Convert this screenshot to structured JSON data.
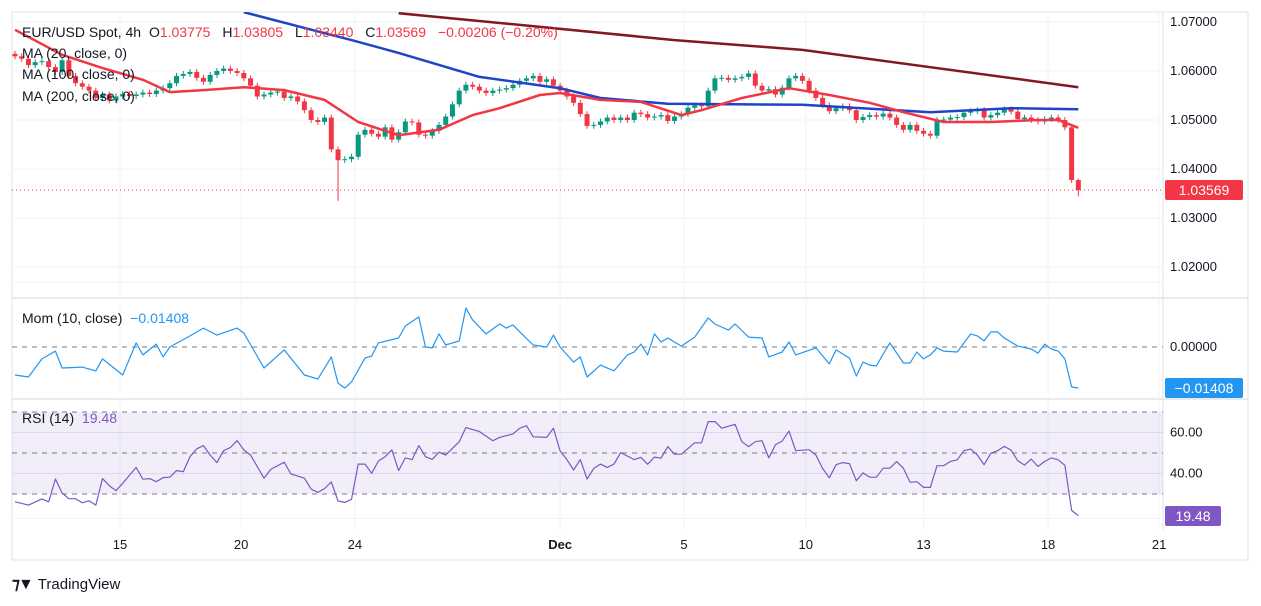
{
  "header": {
    "symbol": "EUR/USD Spot, 4h",
    "open_label": "O",
    "open": "1.03775",
    "high_label": "H",
    "high": "1.03805",
    "low_label": "L",
    "low": "1.03440",
    "close_label": "C",
    "close": "1.03569",
    "change": "−0.00206 (−0.20%)"
  },
  "indicators": {
    "ma20": {
      "label": "MA (20, close, 0)",
      "color": "#f23645"
    },
    "ma100": {
      "label": "MA (100, close, 0)",
      "color": "#1e44c8"
    },
    "ma200": {
      "label": "MA (200, close, 0)",
      "color": "#801922"
    },
    "mom": {
      "label": "Mom (10, close)",
      "value": "−0.01408",
      "color": "#2196f3"
    },
    "rsi": {
      "label": "RSI (14)",
      "value": "19.48",
      "color": "#7e57c2"
    }
  },
  "price_axis": {
    "ticks": [
      "1.07000",
      "1.06000",
      "1.05000",
      "1.04000",
      "1.03000",
      "1.02000"
    ],
    "tick_values": [
      1.07,
      1.06,
      1.05,
      1.04,
      1.03,
      1.02
    ],
    "last_price_tag": "1.03569",
    "last_price_color": "#f23645"
  },
  "mom_axis": {
    "ticks": [
      "0.00000"
    ],
    "tick_values": [
      0
    ],
    "last_tag": "−0.01408"
  },
  "rsi_axis": {
    "ticks": [
      "60.00",
      "40.00"
    ],
    "tick_values": [
      60,
      40
    ],
    "bands": [
      70,
      50,
      30
    ],
    "last_tag": "19.48"
  },
  "time_axis": {
    "ticks": [
      {
        "label": "15",
        "bar": 15.6
      },
      {
        "label": "20",
        "bar": 33.6
      },
      {
        "label": "24",
        "bar": 50.5
      },
      {
        "label": "Dec",
        "bar": 81
      },
      {
        "label": "5",
        "bar": 99.4
      },
      {
        "label": "10",
        "bar": 117.5
      },
      {
        "label": "13",
        "bar": 135
      },
      {
        "label": "18",
        "bar": 153.5
      },
      {
        "label": "21",
        "bar": 170
      }
    ]
  },
  "colors": {
    "up": "#089981",
    "down": "#f23645"
  },
  "branding": {
    "name": "TradingView"
  },
  "chart_data": {
    "type": "candlestick",
    "interval": "4h",
    "ylim": [
      1.015,
      1.072
    ],
    "first_open": 1.0635,
    "last_candle": {
      "open": 1.03775,
      "high": 1.03805,
      "low": 1.0344,
      "close": 1.03569
    },
    "closes": [
      1.063,
      1.0625,
      1.0612,
      1.0618,
      1.062,
      1.0608,
      1.0598,
      1.0622,
      1.059,
      1.0575,
      1.0568,
      1.056,
      1.0545,
      1.0552,
      1.054,
      1.0548,
      1.0553,
      1.0549,
      1.0552,
      1.0556,
      1.0553,
      1.056,
      1.0565,
      1.0575,
      1.059,
      1.0594,
      1.0598,
      1.0586,
      1.0578,
      1.0592,
      1.06,
      1.0605,
      1.06,
      1.0596,
      1.0585,
      1.057,
      1.0548,
      1.0552,
      1.0556,
      1.0558,
      1.0545,
      1.0548,
      1.0538,
      1.052,
      1.05,
      1.0496,
      1.0505,
      1.044,
      1.0418,
      1.042,
      1.0425,
      1.047,
      1.048,
      1.0472,
      1.0466,
      1.0485,
      1.046,
      1.0475,
      1.0497,
      1.0495,
      1.047,
      1.0468,
      1.0478,
      1.049,
      1.0507,
      1.0532,
      1.056,
      1.0572,
      1.0568,
      1.056,
      1.0555,
      1.056,
      1.0562,
      1.0565,
      1.0572,
      1.058,
      1.0585,
      1.059,
      1.0578,
      1.0583,
      1.057,
      1.056,
      1.0548,
      1.0535,
      1.0512,
      1.0488,
      1.049,
      1.0497,
      1.0505,
      1.05,
      1.0505,
      1.05,
      1.0515,
      1.0512,
      1.0505,
      1.0507,
      1.051,
      1.0498,
      1.0507,
      1.0512,
      1.0525,
      1.053,
      1.0528,
      1.056,
      1.0585,
      1.0586,
      1.0582,
      1.0585,
      1.0588,
      1.0595,
      1.057,
      1.056,
      1.0563,
      1.0552,
      1.0566,
      1.0585,
      1.059,
      1.058,
      1.056,
      1.0545,
      1.053,
      1.0518,
      1.0524,
      1.0528,
      1.052,
      1.05,
      1.0506,
      1.051,
      1.0507,
      1.0513,
      1.0505,
      1.049,
      1.048,
      1.049,
      1.0478,
      1.0472,
      1.0468,
      1.05,
      1.0501,
      1.0505,
      1.0506,
      1.0515,
      1.0518,
      1.052,
      1.0505,
      1.051,
      1.0515,
      1.0522,
      1.0517,
      1.0502,
      1.0505,
      1.05,
      1.0497,
      1.0502,
      1.0505,
      1.05,
      1.0485,
      1.03775,
      1.03569
    ],
    "ma20": [
      [
        0,
        1.0684
      ],
      [
        7,
        1.0633
      ],
      [
        13,
        1.0606
      ],
      [
        19,
        1.0582
      ],
      [
        23,
        1.0557
      ],
      [
        28,
        1.0561
      ],
      [
        34,
        1.0567
      ],
      [
        40,
        1.0561
      ],
      [
        46,
        1.0541
      ],
      [
        51,
        1.0496
      ],
      [
        57,
        1.0469
      ],
      [
        63,
        1.048
      ],
      [
        68,
        1.051
      ],
      [
        72,
        1.0524
      ],
      [
        78,
        1.0551
      ],
      [
        81,
        1.0555
      ],
      [
        87,
        1.0541
      ],
      [
        93,
        1.0537
      ],
      [
        99,
        1.051
      ],
      [
        102,
        1.052
      ],
      [
        108,
        1.0545
      ],
      [
        115,
        1.0565
      ],
      [
        121,
        1.0551
      ],
      [
        127,
        1.0535
      ],
      [
        132,
        1.0516
      ],
      [
        138,
        1.0496
      ],
      [
        145,
        1.0496
      ],
      [
        152,
        1.05
      ],
      [
        155,
        1.05
      ],
      [
        158,
        1.0484
      ]
    ],
    "ma100": [
      [
        34,
        1.072
      ],
      [
        43,
        1.0688
      ],
      [
        50,
        1.0663
      ],
      [
        57,
        1.0637
      ],
      [
        69,
        1.0588
      ],
      [
        81,
        1.0565
      ],
      [
        87,
        1.0545
      ],
      [
        97,
        1.0533
      ],
      [
        117,
        1.0531
      ],
      [
        136,
        1.0516
      ],
      [
        148,
        1.0524
      ],
      [
        158,
        1.0522
      ]
    ],
    "ma200": [
      [
        57,
        1.0718
      ],
      [
        75,
        1.0694
      ],
      [
        98,
        1.0663
      ],
      [
        117,
        1.0643
      ],
      [
        158,
        1.0567
      ]
    ],
    "mom": {
      "zero_line": 0,
      "points": [
        [
          0,
          -0.0096
        ],
        [
          2,
          -0.0103
        ],
        [
          4,
          -0.0041
        ],
        [
          6,
          -0.0014
        ],
        [
          7,
          -0.0072
        ],
        [
          10,
          -0.0069
        ],
        [
          12,
          -0.0082
        ],
        [
          13,
          -0.0041
        ],
        [
          16,
          -0.0096
        ],
        [
          18,
          0.0014
        ],
        [
          19,
          -0.0027
        ],
        [
          21,
          0.001
        ],
        [
          22,
          -0.0034
        ],
        [
          23,
          0
        ],
        [
          26,
          0.0038
        ],
        [
          28,
          0.0065
        ],
        [
          30,
          0.0041
        ],
        [
          33,
          0.0065
        ],
        [
          34,
          0.0048
        ],
        [
          37,
          -0.0072
        ],
        [
          40,
          -0.001
        ],
        [
          43,
          -0.0096
        ],
        [
          45,
          -0.011
        ],
        [
          47,
          -0.0034
        ],
        [
          48,
          -0.0124
        ],
        [
          49,
          -0.0141
        ],
        [
          50,
          -0.012
        ],
        [
          52,
          -0.0038
        ],
        [
          53,
          -0.0031
        ],
        [
          54,
          0.0014
        ],
        [
          57,
          0.0031
        ],
        [
          58,
          0.0072
        ],
        [
          60,
          0.0103
        ],
        [
          61,
          0
        ],
        [
          62,
          -0.0003
        ],
        [
          63,
          0.0045
        ],
        [
          64,
          0.0007
        ],
        [
          66,
          0.0021
        ],
        [
          67,
          0.0134
        ],
        [
          68,
          0.0093
        ],
        [
          70,
          0.0045
        ],
        [
          72,
          0.0079
        ],
        [
          73,
          0.0065
        ],
        [
          74,
          0.0076
        ],
        [
          75,
          0.0052
        ],
        [
          77,
          0.0007
        ],
        [
          79,
          0
        ],
        [
          80,
          0.0041
        ],
        [
          81,
          0
        ],
        [
          83,
          -0.0052
        ],
        [
          84,
          -0.0034
        ],
        [
          85,
          -0.0103
        ],
        [
          87,
          -0.0062
        ],
        [
          89,
          -0.0082
        ],
        [
          91,
          -0.0027
        ],
        [
          92,
          -0.0017
        ],
        [
          93,
          0.001
        ],
        [
          94,
          -0.0027
        ],
        [
          95,
          0.0045
        ],
        [
          96,
          0.0017
        ],
        [
          97,
          0.0031
        ],
        [
          99,
          0.0003
        ],
        [
          101,
          0.0034
        ],
        [
          103,
          0.01
        ],
        [
          104,
          0.0079
        ],
        [
          106,
          0.0058
        ],
        [
          107,
          0.0079
        ],
        [
          109,
          0.0034
        ],
        [
          111,
          0.0031
        ],
        [
          112,
          -0.0034
        ],
        [
          114,
          -0.0017
        ],
        [
          115,
          0.0017
        ],
        [
          116,
          -0.0027
        ],
        [
          119,
          -0.0003
        ],
        [
          121,
          -0.0058
        ],
        [
          122,
          -0.001
        ],
        [
          124,
          -0.0038
        ],
        [
          125,
          -0.01
        ],
        [
          126,
          -0.0052
        ],
        [
          127,
          -0.0062
        ],
        [
          128,
          -0.0065
        ],
        [
          129,
          -0.0024
        ],
        [
          130,
          0.0014
        ],
        [
          132,
          -0.0055
        ],
        [
          133,
          -0.0055
        ],
        [
          134,
          -0.0017
        ],
        [
          135,
          -0.0041
        ],
        [
          136,
          -0.0027
        ],
        [
          137,
          -0.0003
        ],
        [
          138,
          -0.0014
        ],
        [
          140,
          -0.0017
        ],
        [
          142,
          0.0045
        ],
        [
          143,
          0.0038
        ],
        [
          144,
          0.0021
        ],
        [
          145,
          0.0052
        ],
        [
          146,
          0.0052
        ],
        [
          147,
          0.0031
        ],
        [
          149,
          0.0003
        ],
        [
          151,
          -0.0007
        ],
        [
          152,
          -0.0021
        ],
        [
          153,
          0.001
        ],
        [
          154,
          -0.0007
        ],
        [
          155,
          -0.0014
        ],
        [
          156,
          -0.0041
        ],
        [
          157,
          -0.0137
        ],
        [
          158,
          -0.01408
        ]
      ]
    },
    "rsi": {
      "ylim": [
        15,
        75
      ],
      "points": [
        [
          0,
          26.2
        ],
        [
          2,
          24.6
        ],
        [
          4,
          27.6
        ],
        [
          5,
          26.2
        ],
        [
          6,
          37.3
        ],
        [
          7,
          30.5
        ],
        [
          8,
          27.7
        ],
        [
          9,
          27.7
        ],
        [
          10,
          25.7
        ],
        [
          11,
          26.7
        ],
        [
          12,
          24.6
        ],
        [
          13,
          37.5
        ],
        [
          14,
          34.1
        ],
        [
          15,
          31.6
        ],
        [
          16,
          35.2
        ],
        [
          18,
          43.0
        ],
        [
          19,
          37.2
        ],
        [
          20,
          37.5
        ],
        [
          21,
          36.0
        ],
        [
          22,
          38.0
        ],
        [
          23,
          38.2
        ],
        [
          24,
          41.4
        ],
        [
          25,
          40.9
        ],
        [
          26,
          48.2
        ],
        [
          27,
          52.0
        ],
        [
          28,
          53.6
        ],
        [
          29,
          49.0
        ],
        [
          30,
          45.3
        ],
        [
          31,
          51.1
        ],
        [
          32,
          52.7
        ],
        [
          33,
          56.0
        ],
        [
          34,
          51.5
        ],
        [
          35,
          49.0
        ],
        [
          37,
          37.7
        ],
        [
          38,
          42.0
        ],
        [
          40,
          45.5
        ],
        [
          41,
          39.8
        ],
        [
          43,
          37.7
        ],
        [
          44,
          32.4
        ],
        [
          45,
          30.8
        ],
        [
          46,
          32.7
        ],
        [
          47,
          35.9
        ],
        [
          48,
          26.6
        ],
        [
          49,
          25.9
        ],
        [
          50,
          27.4
        ],
        [
          51,
          44.6
        ],
        [
          52,
          44.6
        ],
        [
          53,
          40.1
        ],
        [
          54,
          46.1
        ],
        [
          55,
          48.2
        ],
        [
          56,
          51.5
        ],
        [
          57,
          41.4
        ],
        [
          58,
          47.6
        ],
        [
          59,
          46.8
        ],
        [
          60,
          53.6
        ],
        [
          61,
          48.2
        ],
        [
          62,
          46.9
        ],
        [
          63,
          50.4
        ],
        [
          64,
          49.0
        ],
        [
          66,
          55.5
        ],
        [
          67,
          62.4
        ],
        [
          69,
          60.5
        ],
        [
          71,
          56.0
        ],
        [
          72,
          57.6
        ],
        [
          74,
          59.3
        ],
        [
          75,
          62.1
        ],
        [
          76,
          63.3
        ],
        [
          77,
          57.9
        ],
        [
          79,
          57.6
        ],
        [
          80,
          62.1
        ],
        [
          81,
          51.0
        ],
        [
          82,
          46.8
        ],
        [
          83,
          41.7
        ],
        [
          84,
          46.8
        ],
        [
          85,
          37.3
        ],
        [
          86,
          42.5
        ],
        [
          87,
          44.6
        ],
        [
          88,
          43.0
        ],
        [
          89,
          44.6
        ],
        [
          90,
          50.2
        ],
        [
          92,
          46.8
        ],
        [
          93,
          47.9
        ],
        [
          94,
          44.5
        ],
        [
          95,
          48.0
        ],
        [
          96,
          47.5
        ],
        [
          97,
          53.1
        ],
        [
          98,
          49.4
        ],
        [
          99,
          49.4
        ],
        [
          101,
          55.0
        ],
        [
          102,
          55.0
        ],
        [
          103,
          65.3
        ],
        [
          104,
          65.3
        ],
        [
          105,
          62.1
        ],
        [
          107,
          64.0
        ],
        [
          108,
          55.5
        ],
        [
          109,
          53.1
        ],
        [
          110,
          55.5
        ],
        [
          111,
          56.0
        ],
        [
          112,
          47.6
        ],
        [
          113,
          54.1
        ],
        [
          114,
          55.8
        ],
        [
          115,
          60.7
        ],
        [
          116,
          51.1
        ],
        [
          118,
          51.6
        ],
        [
          119,
          49.0
        ],
        [
          120,
          42.5
        ],
        [
          121,
          37.9
        ],
        [
          122,
          44.3
        ],
        [
          123,
          45.3
        ],
        [
          124,
          44.8
        ],
        [
          125,
          36.5
        ],
        [
          126,
          40.3
        ],
        [
          127,
          38.2
        ],
        [
          128,
          38.2
        ],
        [
          129,
          42.6
        ],
        [
          130,
          42.6
        ],
        [
          131,
          45.8
        ],
        [
          132,
          42.6
        ],
        [
          133,
          35.7
        ],
        [
          134,
          36.0
        ],
        [
          135,
          33.2
        ],
        [
          136,
          33.2
        ],
        [
          137,
          43.8
        ],
        [
          138,
          43.8
        ],
        [
          139,
          45.9
        ],
        [
          140,
          46.7
        ],
        [
          141,
          51.1
        ],
        [
          142,
          51.9
        ],
        [
          143,
          49.0
        ],
        [
          144,
          44.3
        ],
        [
          145,
          49.9
        ],
        [
          146,
          51.1
        ],
        [
          147,
          53.2
        ],
        [
          148,
          51.4
        ],
        [
          149,
          46.2
        ],
        [
          150,
          44.1
        ],
        [
          151,
          47.0
        ],
        [
          152,
          43.4
        ],
        [
          153,
          45.9
        ],
        [
          154,
          47.6
        ],
        [
          155,
          46.7
        ],
        [
          156,
          44.0
        ],
        [
          157,
          22.0
        ],
        [
          158,
          19.48
        ]
      ]
    }
  }
}
